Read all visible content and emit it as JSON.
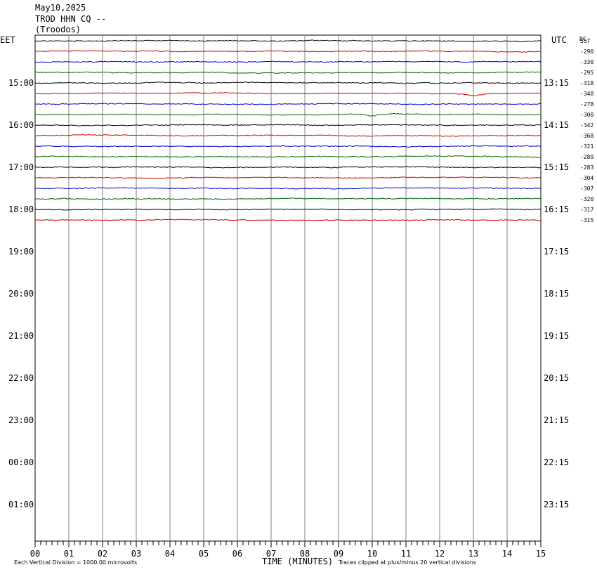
{
  "header": {
    "date": "May10,2025",
    "station": "TROD HHN CQ --",
    "location": "(Troodos)"
  },
  "left_tz": "EET",
  "right_tz": "UTC",
  "dc_label": "DC",
  "footer": {
    "xlabel": "TIME (MINUTES)",
    "scale_note": "Each Vertical Division = 1000.00 microvolts",
    "clip_note": "Traces clipped at plus/minus 20 vertical divisions"
  },
  "colors": {
    "trace_cycle": [
      "#000000",
      "#cc0000",
      "#0000cc",
      "#006600"
    ],
    "grid": "#808080"
  },
  "chart_data": {
    "type": "line",
    "title": "May10,2025 TROD HHN CQ -- (Troodos)",
    "xlabel": "TIME (MINUTES)",
    "xlim": [
      0,
      15
    ],
    "x_ticks": [
      "00",
      "01",
      "02",
      "03",
      "04",
      "05",
      "06",
      "07",
      "08",
      "09",
      "10",
      "11",
      "12",
      "13",
      "14",
      "15"
    ],
    "grid": true,
    "left_hour_labels": [
      "15:00",
      "16:00",
      "17:00",
      "18:00",
      "19:00",
      "20:00",
      "21:00",
      "22:00",
      "23:00",
      "00:00",
      "01:00"
    ],
    "right_hour_labels": [
      "13:15",
      "14:15",
      "15:15",
      "16:15",
      "17:15",
      "18:15",
      "19:15",
      "20:15",
      "21:15",
      "22:15",
      "23:15"
    ],
    "dc_offsets": [
      "557",
      "-290",
      "-330",
      "-295",
      "-318",
      "-348",
      "-278",
      "-300",
      "-342",
      "-368",
      "-321",
      "-289",
      "-283",
      "-304",
      "-307",
      "-320",
      "-317",
      "-315"
    ],
    "traces": 18,
    "events": [
      {
        "trace": 5,
        "minute": 13.0,
        "note": "small dip"
      },
      {
        "trace": 7,
        "minute": 10.0,
        "note": "small dip"
      },
      {
        "trace": 11,
        "minute": 15.0,
        "note": "slight drop at end"
      }
    ]
  }
}
